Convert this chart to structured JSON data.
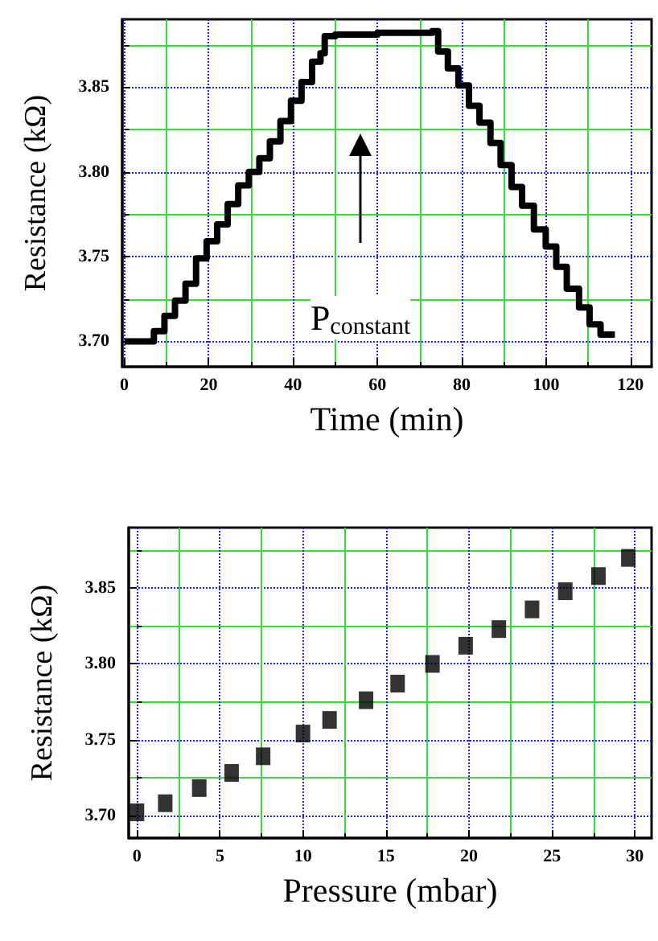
{
  "chart_data": [
    {
      "type": "step",
      "xlabel": "Time (min)",
      "ylabel": "Resistance (kΩ)",
      "xlim": [
        -0.5,
        125
      ],
      "ylim": [
        3.685,
        3.89
      ],
      "xticks": [
        0,
        {
          "value": 10,
          "label": null
        },
        20,
        {
          "value": 30,
          "label": null
        },
        40,
        {
          "value": 50,
          "label": null
        },
        60,
        {
          "value": 70,
          "label": null
        },
        80,
        {
          "value": 90,
          "label": null
        },
        100,
        {
          "value": 110,
          "label": null
        },
        120
      ],
      "yticks": [
        {
          "value": 3.7,
          "label": "3.70"
        },
        {
          "value": 3.725,
          "label": null
        },
        {
          "value": 3.75,
          "label": "3.75"
        },
        {
          "value": 3.775,
          "label": null
        },
        {
          "value": 3.8,
          "label": "3.80"
        },
        {
          "value": 3.825,
          "label": null
        },
        {
          "value": 3.85,
          "label": "3.85"
        },
        {
          "value": 3.875,
          "label": null
        }
      ],
      "grid": true,
      "marker": "none",
      "line_style": "solid",
      "x": [
        0,
        7,
        9.5,
        12,
        14.5,
        17,
        19.5,
        22,
        24.5,
        27,
        29.5,
        32,
        34.5,
        37,
        39.5,
        42,
        44.5,
        46.5,
        47.5,
        50,
        60,
        73,
        74.4,
        76.7,
        79.2,
        81.7,
        84.2,
        86.8,
        89.2,
        91.8,
        94.3,
        97.1,
        99.9,
        102.4,
        104.9,
        107.8,
        110.3,
        112.9,
        116.3
      ],
      "series": [
        {
          "color": "#000000",
          "values": [
            3.7,
            3.706,
            3.715,
            3.724,
            3.734,
            3.749,
            3.759,
            3.769,
            3.781,
            3.792,
            3.8,
            3.808,
            3.818,
            3.83,
            3.842,
            3.853,
            3.865,
            3.87,
            3.88,
            3.881,
            3.882,
            3.883,
            3.871,
            3.861,
            3.851,
            3.839,
            3.829,
            3.817,
            3.804,
            3.791,
            3.78,
            3.766,
            3.756,
            3.744,
            3.731,
            3.72,
            3.71,
            3.704,
            3.704
          ]
        }
      ],
      "annotations": [
        "P$_{constant}$"
      ]
    },
    {
      "type": "scatter",
      "xlabel": "Pressure (mbar)",
      "ylabel": "Resistance (kΩ)",
      "xlim": [
        -0.5,
        31
      ],
      "ylim": [
        3.685,
        3.89
      ],
      "xticks": [
        0,
        {
          "value": 2.5,
          "label": null
        },
        5,
        {
          "value": 7.5,
          "label": null
        },
        10,
        {
          "value": 12.5,
          "label": null
        },
        15,
        {
          "value": 17.5,
          "label": null
        },
        20,
        {
          "value": 22.5,
          "label": null
        },
        25,
        {
          "value": 27.5,
          "label": null
        },
        30
      ],
      "yticks": [
        {
          "value": 3.7,
          "label": "3.70"
        },
        {
          "value": 3.725,
          "label": null
        },
        {
          "value": 3.75,
          "label": "3.75"
        },
        {
          "value": 3.775,
          "label": null
        },
        {
          "value": 3.8,
          "label": "3.80"
        },
        {
          "value": 3.825,
          "label": null
        },
        {
          "value": 3.85,
          "label": "3.85"
        },
        {
          "value": 3.875,
          "label": null
        }
      ],
      "grid": true,
      "marker": "square",
      "x": [
        0,
        1.7,
        3.75,
        5.7,
        7.6,
        10,
        11.6,
        13.8,
        15.7,
        17.8,
        19.8,
        21.8,
        23.8,
        25.8,
        27.8,
        29.6
      ],
      "series": [
        {
          "color": "#000000",
          "values": [
            3.702,
            3.708,
            3.718,
            3.728,
            3.739,
            3.754,
            3.763,
            3.776,
            3.787,
            3.8,
            3.812,
            3.823,
            3.836,
            3.848,
            3.858,
            3.87
          ]
        }
      ]
    }
  ]
}
